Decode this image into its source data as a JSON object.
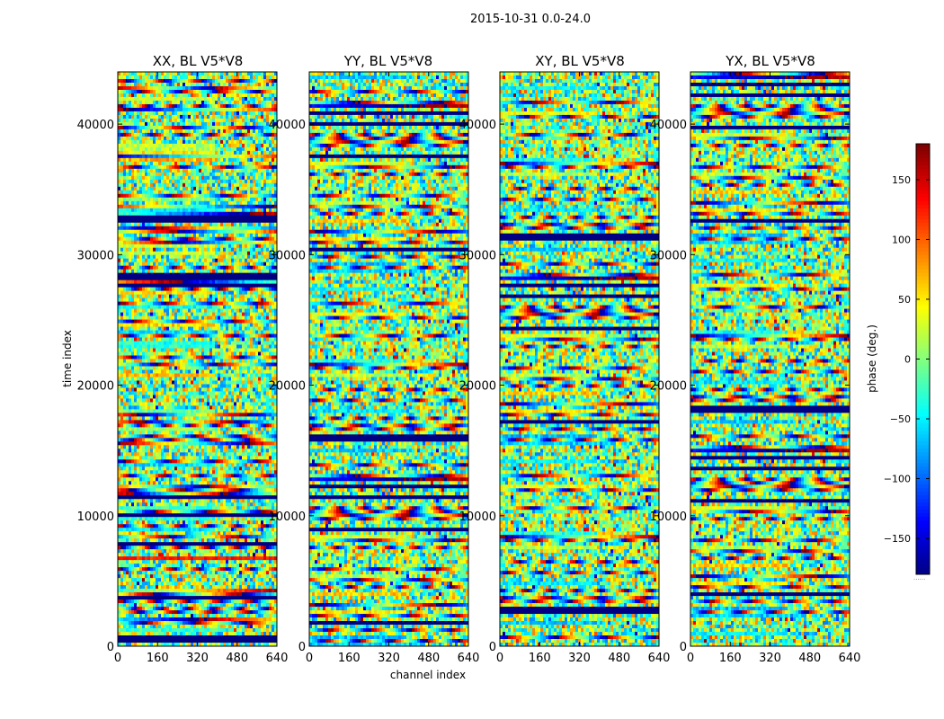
{
  "figure": {
    "suptitle": "2015-10-31 0.0-24.0"
  },
  "chart_data": [
    {
      "type": "heatmap",
      "title": "XX, BL V5*V8",
      "xlabel": "channel index",
      "ylabel": "time index",
      "xlim": [
        0,
        640
      ],
      "ylim": [
        0,
        44000
      ],
      "xticks": [
        0,
        160,
        320,
        480,
        640
      ],
      "yticks": [
        0,
        10000,
        20000,
        30000,
        40000
      ],
      "colormap": "jet",
      "value_range": [
        -180,
        180
      ]
    },
    {
      "type": "heatmap",
      "title": "YY, BL V5*V8",
      "xlabel": "channel index",
      "ylabel": "",
      "xlim": [
        0,
        640
      ],
      "ylim": [
        0,
        44000
      ],
      "xticks": [
        0,
        160,
        320,
        480,
        640
      ],
      "yticks": [
        0,
        10000,
        20000,
        30000,
        40000
      ],
      "colormap": "jet",
      "value_range": [
        -180,
        180
      ]
    },
    {
      "type": "heatmap",
      "title": "XY, BL V5*V8",
      "xlabel": "",
      "ylabel": "",
      "xlim": [
        0,
        640
      ],
      "ylim": [
        0,
        44000
      ],
      "xticks": [
        0,
        160,
        320,
        480,
        640
      ],
      "yticks": [
        0,
        10000,
        20000,
        30000,
        40000
      ],
      "colormap": "jet",
      "value_range": [
        -180,
        180
      ]
    },
    {
      "type": "heatmap",
      "title": "YX, BL V5*V8",
      "xlabel": "",
      "ylabel": "",
      "xlim": [
        0,
        640
      ],
      "ylim": [
        0,
        44000
      ],
      "xticks": [
        0,
        160,
        320,
        480,
        640
      ],
      "yticks": [
        0,
        10000,
        20000,
        30000,
        40000
      ],
      "colormap": "jet",
      "value_range": [
        -180,
        180
      ]
    }
  ],
  "colorbar": {
    "label": "phase (deg.)",
    "range": [
      -180,
      180
    ],
    "ticks": [
      150,
      100,
      50,
      0,
      -50,
      -100,
      -150
    ],
    "tick_labels": [
      "150",
      "100",
      "50",
      "0",
      "−50",
      "−100",
      "−150"
    ],
    "bottom_note": "......"
  }
}
